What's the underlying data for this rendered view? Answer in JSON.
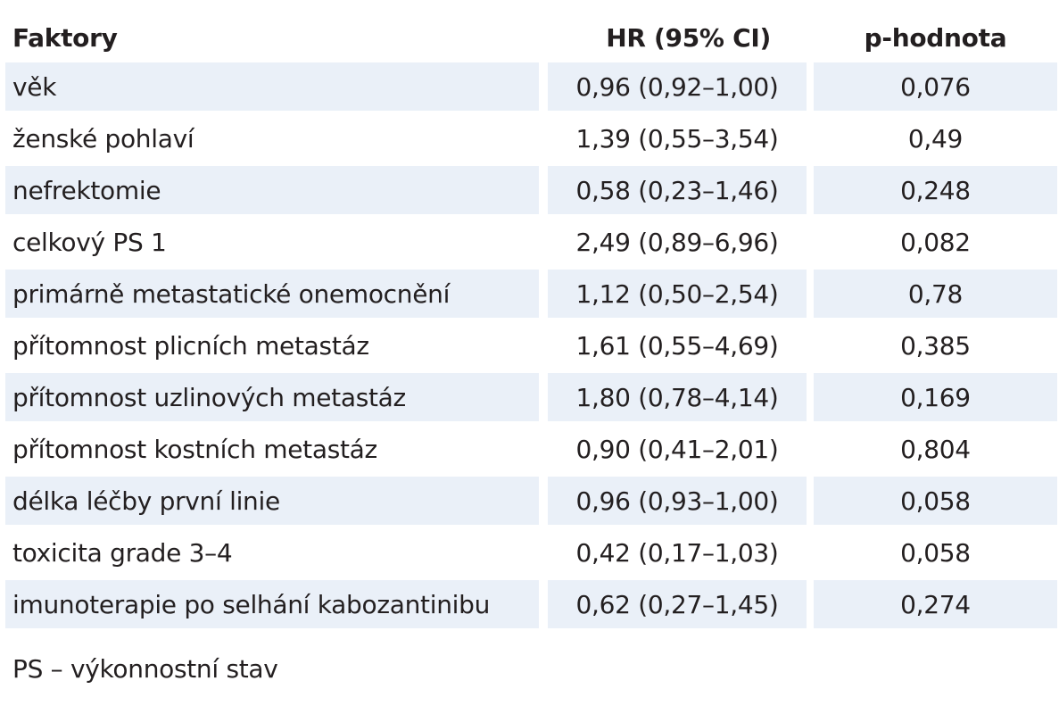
{
  "table": {
    "headers": [
      "Faktory",
      "HR (95% CI)",
      "p-hodnota"
    ],
    "rows": [
      {
        "factor": "věk",
        "hr": "0,96 (0,92–1,00)",
        "p": "0,076"
      },
      {
        "factor": "ženské pohlaví",
        "hr": "1,39 (0,55–3,54)",
        "p": "0,49"
      },
      {
        "factor": "nefrektomie",
        "hr": "0,58 (0,23–1,46)",
        "p": "0,248"
      },
      {
        "factor": "celkový PS 1",
        "hr": "2,49 (0,89–6,96)",
        "p": "0,082"
      },
      {
        "factor": "primárně metastatické onemocnění",
        "hr": "1,12 (0,50–2,54)",
        "p": "0,78"
      },
      {
        "factor": "přítomnost plicních metastáz",
        "hr": "1,61 (0,55–4,69)",
        "p": "0,385"
      },
      {
        "factor": "přítomnost uzlinových metastáz",
        "hr": "1,80 (0,78–4,14)",
        "p": "0,169"
      },
      {
        "factor": "přítomnost kostních metastáz",
        "hr": "0,90 (0,41–2,01)",
        "p": "0,804"
      },
      {
        "factor": "délka léčby první linie",
        "hr": "0,96 (0,93–1,00)",
        "p": "0,058"
      },
      {
        "factor": "toxicita grade 3–4",
        "hr": "0,42 (0,17–1,03)",
        "p": "0,058"
      },
      {
        "factor": "imunoterapie po selhání kabozantinibu",
        "hr": "0,62 (0,27–1,45)",
        "p": "0,274"
      }
    ]
  },
  "footnote": "PS – výkonnostní stav",
  "colors": {
    "row_shade": "#eaf0f8",
    "text": "#231f20"
  }
}
